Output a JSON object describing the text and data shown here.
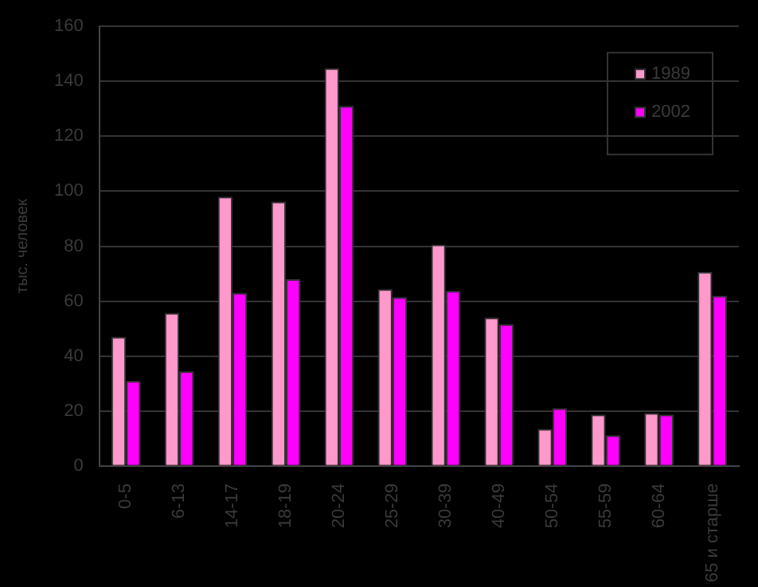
{
  "chart_data": {
    "type": "bar",
    "ylabel": "тыс. человек",
    "categories": [
      "0-5",
      "6-13",
      "14-17",
      "18-19",
      "20-24",
      "25-29",
      "30-39",
      "40-49",
      "50-54",
      "55-59",
      "60-64",
      "65 и старше"
    ],
    "series": [
      {
        "name": "1989",
        "color": "#ff99cc",
        "values": [
          47,
          55.7,
          98,
          96.2,
          144.8,
          64.4,
          80.6,
          54,
          13.5,
          18.7,
          19.3,
          70.7
        ]
      },
      {
        "name": "2002",
        "color": "#ff00ff",
        "values": [
          31,
          34.5,
          63,
          68,
          131,
          61.5,
          63.8,
          51.6,
          21,
          11.2,
          18.7,
          62
        ]
      }
    ],
    "ylim": [
      0,
      160
    ],
    "yticks": [
      0,
      20,
      40,
      60,
      80,
      100,
      120,
      140,
      160
    ],
    "grid": "y",
    "legend": "top right"
  }
}
